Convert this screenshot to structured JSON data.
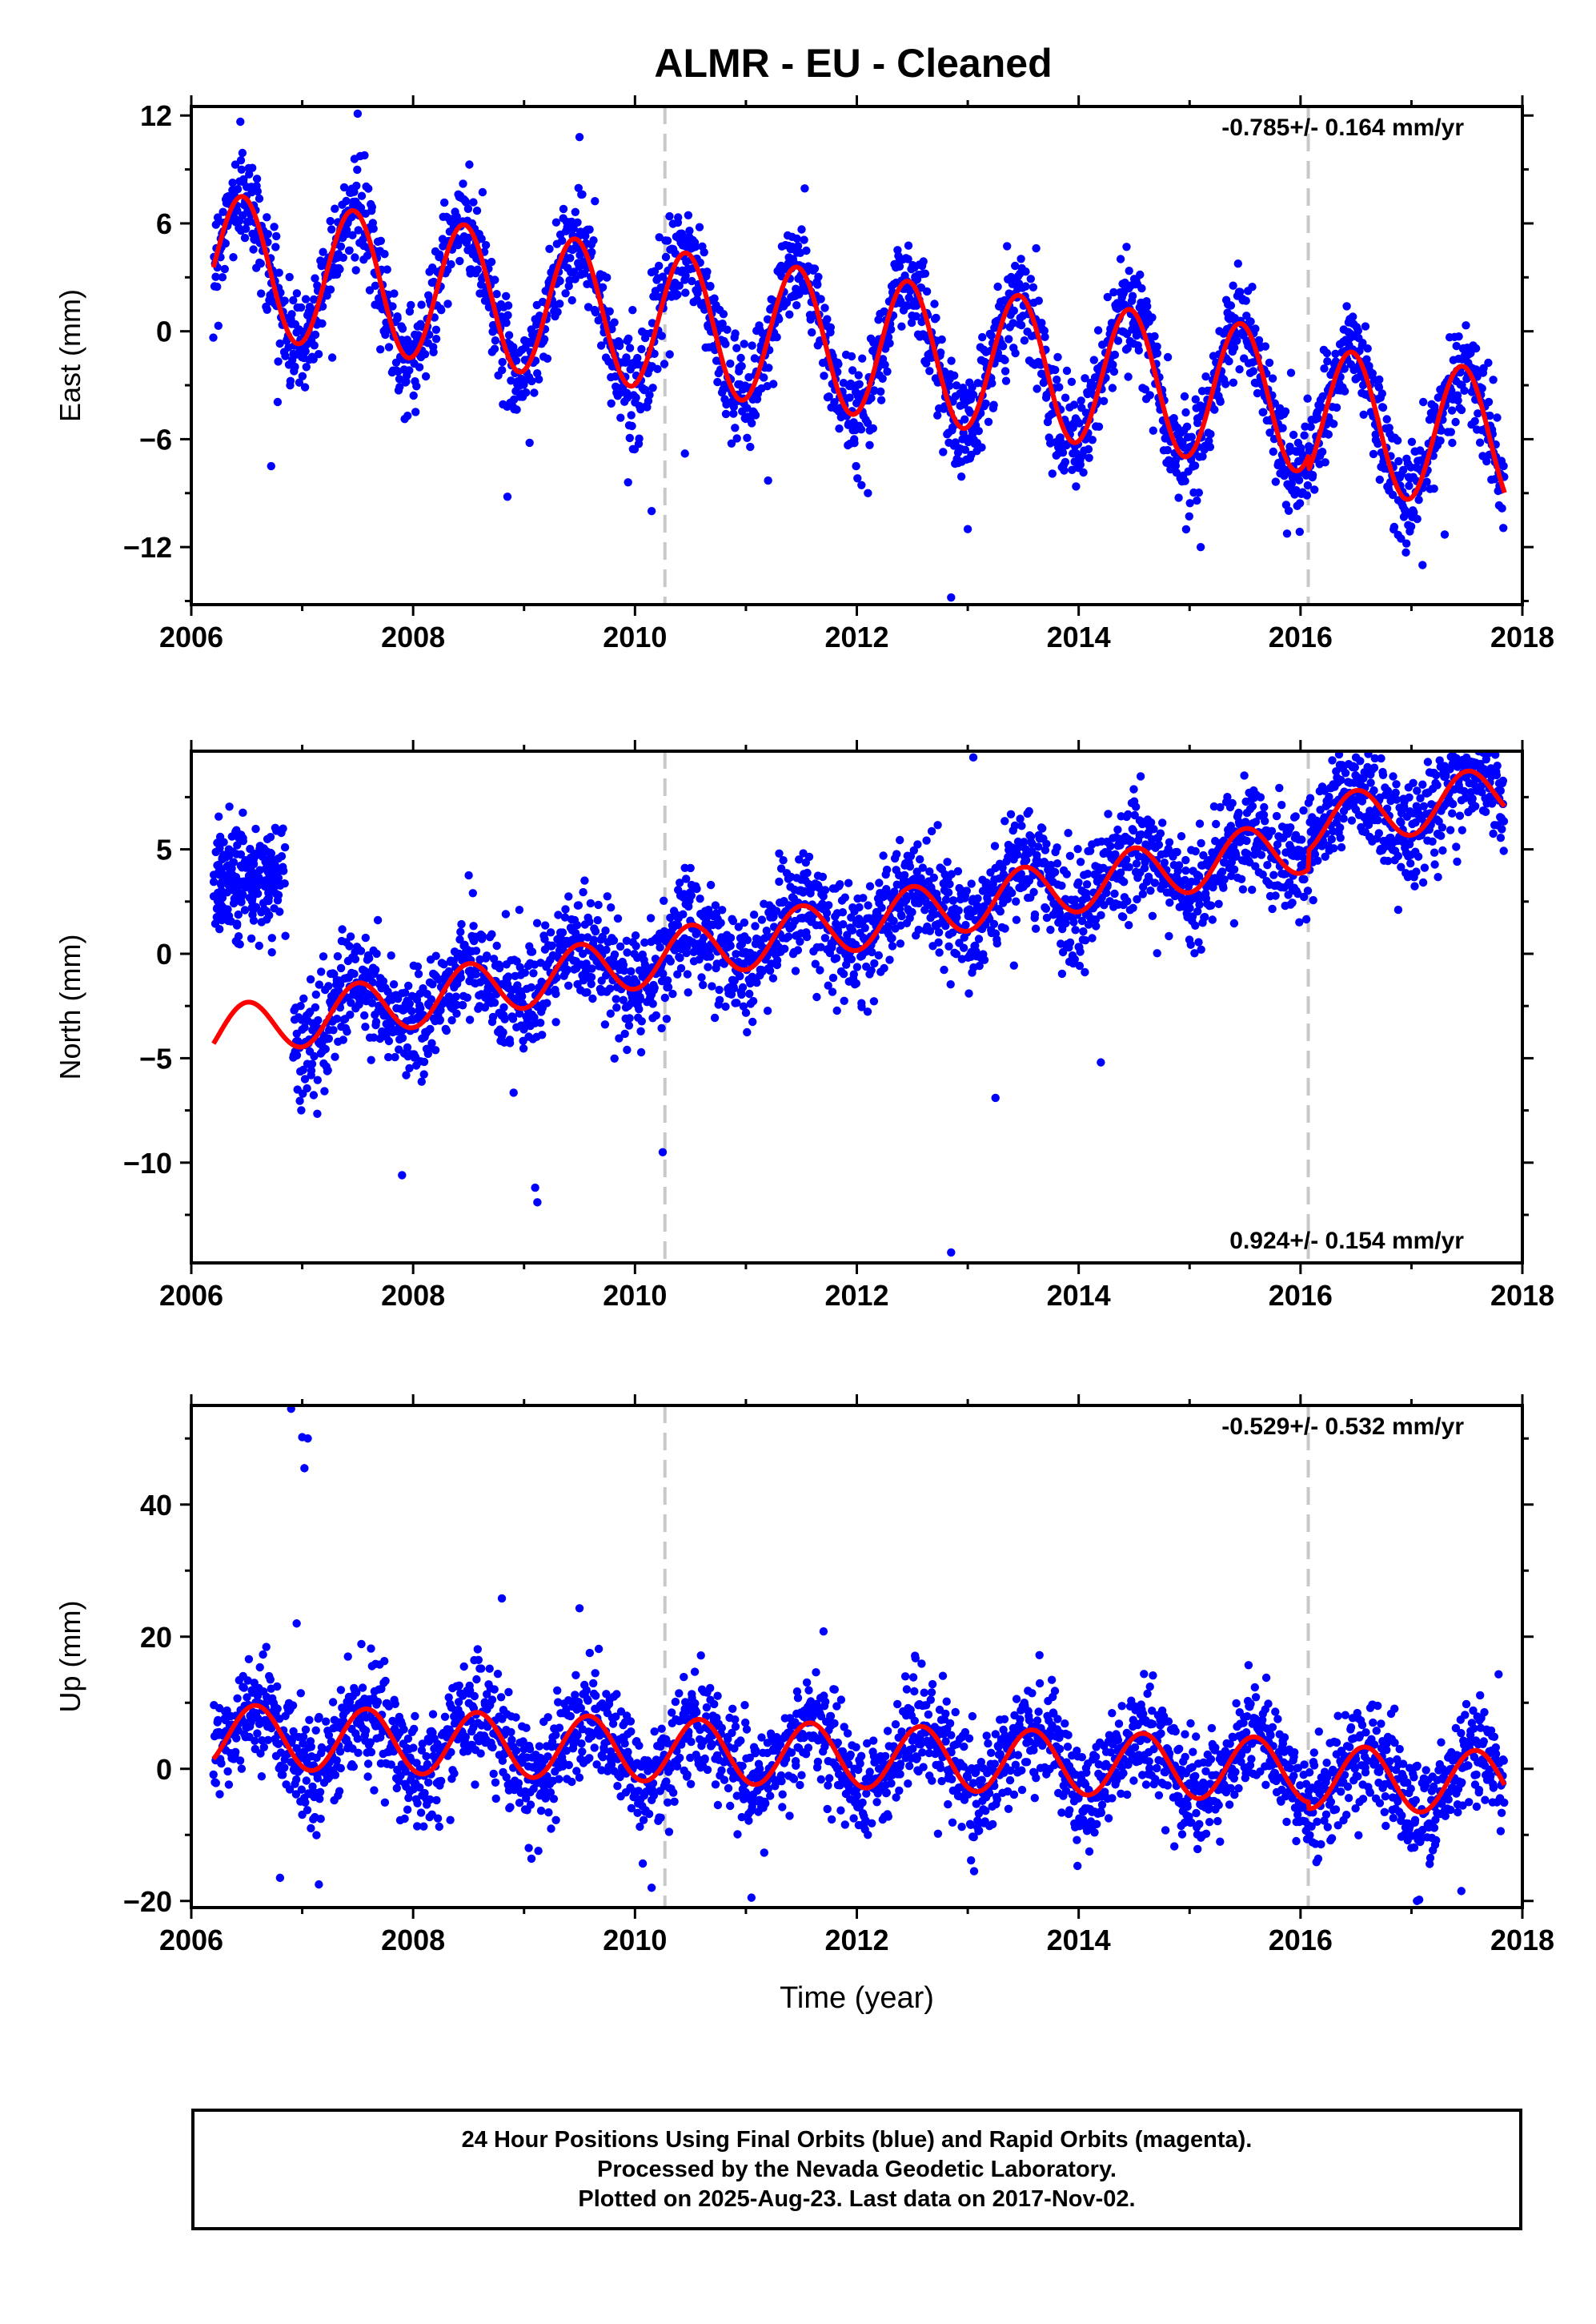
{
  "title": "ALMR  - EU - Cleaned",
  "footer": {
    "line1": "24 Hour Positions Using Final Orbits (blue) and Rapid Orbits (magenta).",
    "line2": "Processed by the Nevada Geodetic Laboratory.",
    "line3": "Plotted on 2025-Aug-23. Last data on 2017-Nov-02."
  },
  "colors": {
    "points": "#0000ff",
    "model": "#ff0000",
    "steps": "#c8c8c8"
  },
  "chart_data": [
    {
      "type": "scatter",
      "ylabel": "East (mm)",
      "xlabel": "",
      "xlim": [
        2006,
        2018
      ],
      "ylim": [
        -15.2,
        12.5
      ],
      "xticks": [
        2006,
        2008,
        2010,
        2012,
        2014,
        2016,
        2018
      ],
      "yticks": [
        -12,
        -6,
        0,
        6,
        12
      ],
      "rate_label": "-0.785+/- 0.164 mm/yr",
      "rate_position": "top-right",
      "step_lines_x": [
        2010.27,
        2016.07
      ],
      "model": {
        "name": "",
        "x_start": 2006.2,
        "x_end": 2017.84,
        "offset_at_start": 3.8,
        "trend_mm_per_yr": -0.785,
        "annual_amplitude": 3.9,
        "annual_peak_phase": 0.46,
        "offset_from_2016_07": -0.8
      },
      "point_cloud": {
        "x_start": 2006.2,
        "x_end": 2017.84,
        "scatter_mm": 1.4
      },
      "outliers": [
        {
          "x": 2006.72,
          "y": -7.5
        },
        {
          "x": 2007.95,
          "y": -4.7
        },
        {
          "x": 2008.85,
          "y": -9.2
        },
        {
          "x": 2009.05,
          "y": -6.2
        },
        {
          "x": 2010.15,
          "y": -10.0
        },
        {
          "x": 2010.45,
          "y": -6.8
        },
        {
          "x": 2011.2,
          "y": -8.3
        },
        {
          "x": 2012.1,
          "y": -9.0
        },
        {
          "x": 2012.85,
          "y": -14.8
        },
        {
          "x": 2013.0,
          "y": -11.0
        },
        {
          "x": 2015.1,
          "y": -12.0
        },
        {
          "x": 2016.95,
          "y": -12.3
        },
        {
          "x": 2017.1,
          "y": -13.0
        },
        {
          "x": 2017.3,
          "y": -11.3
        },
        {
          "x": 2007.5,
          "y": 12.1
        },
        {
          "x": 2009.5,
          "y": 10.8
        }
      ]
    },
    {
      "type": "scatter",
      "ylabel": "North (mm)",
      "xlabel": "",
      "xlim": [
        2006,
        2018
      ],
      "ylim": [
        -14.8,
        9.7
      ],
      "xticks": [
        2006,
        2008,
        2010,
        2012,
        2014,
        2016,
        2018
      ],
      "yticks": [
        -10,
        -5,
        0,
        5
      ],
      "rate_label": "0.924+/- 0.154 mm/yr",
      "rate_position": "bottom-right",
      "step_lines_x": [
        2010.27,
        2016.07
      ],
      "model": {
        "name": "",
        "x_start": 2006.2,
        "x_end": 2017.84,
        "offset_at_start": -3.9,
        "trend_mm_per_yr": 0.924,
        "annual_amplitude": 1.3,
        "annual_peak_phase": 0.5,
        "offset_from_2016_07": 0.9
      },
      "point_cloud": {
        "x_start": 2006.92,
        "x_end": 2017.84,
        "scatter_mm": 1.3
      },
      "early_cluster": {
        "x_start": 2006.2,
        "x_end": 2006.85,
        "center_mm": 3.5,
        "scatter_mm": 1.2
      },
      "outliers": [
        {
          "x": 2007.9,
          "y": -10.6
        },
        {
          "x": 2009.1,
          "y": -11.2
        },
        {
          "x": 2009.12,
          "y": -11.9
        },
        {
          "x": 2012.85,
          "y": -14.3
        },
        {
          "x": 2013.05,
          "y": 9.4
        },
        {
          "x": 2016.5,
          "y": 9.4
        },
        {
          "x": 2013.25,
          "y": -6.9
        },
        {
          "x": 2014.2,
          "y": -5.2
        },
        {
          "x": 2010.25,
          "y": -9.5
        },
        {
          "x": 2011.3,
          "y": 4.8
        }
      ]
    },
    {
      "type": "scatter",
      "ylabel": "Up (mm)",
      "xlabel": "Time (year)",
      "xlim": [
        2006,
        2018
      ],
      "ylim": [
        -21,
        55
      ],
      "xticks": [
        2006,
        2008,
        2010,
        2012,
        2014,
        2016,
        2018
      ],
      "yticks": [
        -20,
        0,
        20,
        40
      ],
      "rate_label": "-0.529+/- 0.532 mm/yr",
      "rate_position": "top-right",
      "step_lines_x": [
        2010.27,
        2016.07
      ],
      "model": {
        "name": "",
        "x_start": 2006.2,
        "x_end": 2017.84,
        "offset_at_start": 5.0,
        "trend_mm_per_yr": -0.529,
        "annual_amplitude": 4.8,
        "annual_peak_phase": 0.58,
        "offset_from_2016_07": -1.0
      },
      "point_cloud": {
        "x_start": 2006.2,
        "x_end": 2017.84,
        "scatter_mm": 4.0
      },
      "outliers": [
        {
          "x": 2006.9,
          "y": 54.5
        },
        {
          "x": 2007.0,
          "y": 50.2
        },
        {
          "x": 2007.05,
          "y": 50.0
        },
        {
          "x": 2007.02,
          "y": 45.5
        },
        {
          "x": 2006.95,
          "y": 22.0
        },
        {
          "x": 2008.8,
          "y": 25.8
        },
        {
          "x": 2009.5,
          "y": 24.3
        },
        {
          "x": 2011.7,
          "y": 20.8
        },
        {
          "x": 2007.15,
          "y": -17.5
        },
        {
          "x": 2006.8,
          "y": -16.5
        },
        {
          "x": 2011.05,
          "y": -19.5
        },
        {
          "x": 2017.05,
          "y": -20.0
        },
        {
          "x": 2017.45,
          "y": -18.5
        },
        {
          "x": 2010.15,
          "y": -18.0
        }
      ]
    }
  ]
}
